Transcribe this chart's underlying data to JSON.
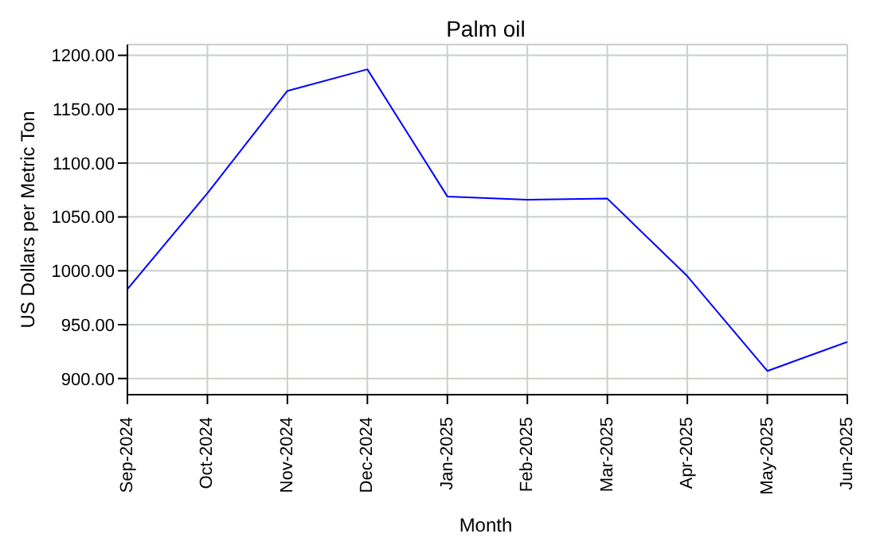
{
  "chart_data": {
    "type": "line",
    "title": "Palm oil",
    "xlabel": "Month",
    "ylabel": "US Dollars per Metric Ton",
    "categories": [
      "Sep-2024",
      "Oct-2024",
      "Nov-2024",
      "Dec-2024",
      "Jan-2025",
      "Feb-2025",
      "Mar-2025",
      "Apr-2025",
      "May-2025",
      "Jun-2025"
    ],
    "series": [
      {
        "color": "#0000ff",
        "values": [
          983,
          1072,
          1167,
          1187,
          1069,
          1066,
          1067,
          995,
          907,
          934
        ]
      }
    ],
    "ylim": [
      885,
      1210
    ],
    "yticks": [
      {
        "value": 900,
        "label": "900.00"
      },
      {
        "value": 950,
        "label": "950.00"
      },
      {
        "value": 1000,
        "label": "1000.00"
      },
      {
        "value": 1050,
        "label": "1050.00"
      },
      {
        "value": 1100,
        "label": "1100.00"
      },
      {
        "value": 1150,
        "label": "1150.00"
      },
      {
        "value": 1200,
        "label": "1200.00"
      }
    ],
    "grid": true,
    "marker": "none",
    "line_style": "solid"
  }
}
